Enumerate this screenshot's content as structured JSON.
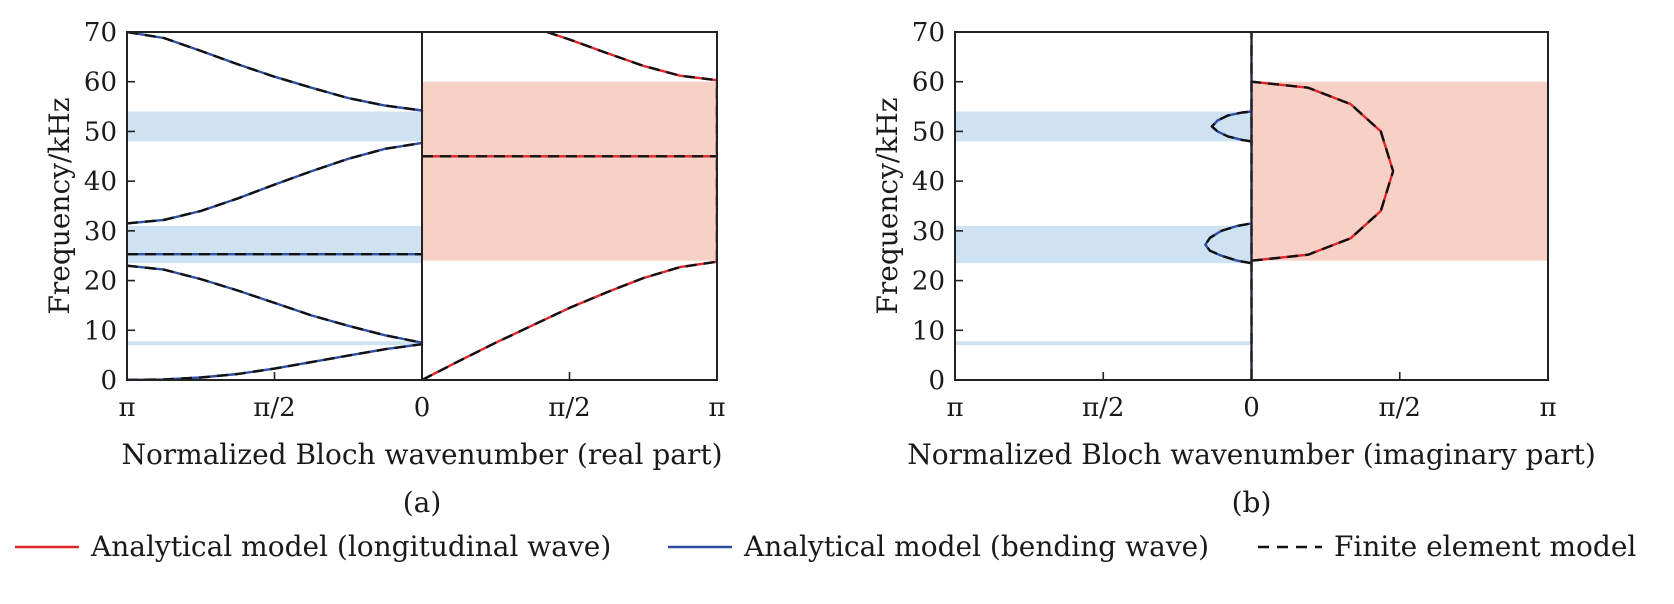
{
  "colors": {
    "longitudinal": "#e0262b",
    "bending": "#2d4ea3",
    "fe": "#111111",
    "band_blue": "#cfe2f1",
    "band_red": "#f7d0c6",
    "axis": "#222222"
  },
  "legend": {
    "items": [
      {
        "key": "longitudinal",
        "label": "Analytical model (longitudinal wave)",
        "style": "solid"
      },
      {
        "key": "bending",
        "label": "Analytical model (bending wave)",
        "style": "solid"
      },
      {
        "key": "fe",
        "label": "Finite element model",
        "style": "dashed"
      }
    ]
  },
  "chart_data": [
    {
      "type": "line",
      "panel_label": "(a)",
      "xlabel": "Normalized Bloch wavenumber (real part)",
      "ylabel": "Frequency/kHz",
      "ylim": [
        0,
        70
      ],
      "yticks": [
        0,
        10,
        20,
        30,
        40,
        50,
        60,
        70
      ],
      "x_axis": {
        "left_half": {
          "range": [
            3.1416,
            0
          ],
          "ticks": [
            "π",
            "π/2",
            "0"
          ],
          "content": "bending wave"
        },
        "right_half": {
          "range": [
            0,
            3.1416
          ],
          "ticks": [
            "0",
            "π/2",
            "π"
          ],
          "content": "longitudinal wave"
        }
      },
      "bandgaps": {
        "bending": [
          [
            48,
            54
          ],
          [
            23.5,
            31
          ],
          [
            7,
            7.8
          ]
        ],
        "longitudinal": [
          [
            24,
            60
          ]
        ]
      },
      "series": [
        {
          "key": "bending",
          "half": "left",
          "x": [
            3.1416,
            2.749,
            2.356,
            1.963,
            1.571,
            1.178,
            0.785,
            0.393,
            0
          ],
          "y": [
            0,
            0.1,
            0.5,
            1.2,
            2.3,
            3.6,
            4.9,
            6.2,
            7.2
          ]
        },
        {
          "key": "bending",
          "half": "left",
          "x": [
            3.1416,
            2.749,
            2.356,
            1.963,
            1.571,
            1.178,
            0.785,
            0.393,
            0
          ],
          "y": [
            23,
            22.2,
            20.3,
            18.0,
            15.5,
            13.0,
            10.9,
            9.0,
            7.5
          ]
        },
        {
          "key": "bending",
          "half": "left",
          "x": [
            3.1416,
            0
          ],
          "y": [
            25.3,
            25.3
          ]
        },
        {
          "key": "bending",
          "half": "left",
          "x": [
            3.1416,
            2.749,
            2.356,
            1.963,
            1.571,
            1.178,
            0.785,
            0.393,
            0
          ],
          "y": [
            31.5,
            32.2,
            34.0,
            36.5,
            39.3,
            42.0,
            44.5,
            46.5,
            47.7
          ]
        },
        {
          "key": "bending",
          "half": "left",
          "x": [
            3.1416,
            2.749,
            2.356,
            1.963,
            1.571,
            1.178,
            0.785,
            0.393,
            0
          ],
          "y": [
            70,
            68.8,
            66.2,
            63.5,
            61.0,
            58.8,
            56.7,
            55.2,
            54.2
          ]
        },
        {
          "key": "longitudinal",
          "half": "right",
          "x": [
            0,
            0.393,
            0.785,
            1.178,
            1.571,
            1.963,
            2.356,
            2.749,
            3.1416
          ],
          "y": [
            0,
            3.8,
            7.5,
            11.0,
            14.5,
            17.6,
            20.5,
            22.7,
            23.8
          ]
        },
        {
          "key": "longitudinal",
          "half": "right",
          "x": [
            0,
            3.1416
          ],
          "y": [
            45,
            45
          ]
        },
        {
          "key": "longitudinal",
          "half": "right",
          "x": [
            1.33,
            1.571,
            1.963,
            2.356,
            2.749,
            3.1416
          ],
          "y": [
            70,
            68.5,
            65.8,
            63.2,
            61.2,
            60.3
          ]
        },
        {
          "key": "longitudinal",
          "half": "right",
          "x": [
            3.1416,
            3.1416
          ],
          "y": [
            24,
            60
          ]
        }
      ]
    },
    {
      "type": "line",
      "panel_label": "(b)",
      "xlabel": "Normalized Bloch wavenumber (imaginary part)",
      "ylabel": "Frequency/kHz",
      "ylim": [
        0,
        70
      ],
      "yticks": [
        0,
        10,
        20,
        30,
        40,
        50,
        60,
        70
      ],
      "x_axis": {
        "left_half": {
          "range": [
            3.1416,
            0
          ],
          "ticks": [
            "π",
            "π/2",
            "0"
          ],
          "content": "bending wave"
        },
        "right_half": {
          "range": [
            0,
            3.1416
          ],
          "ticks": [
            "0",
            "π/2",
            "π"
          ],
          "content": "longitudinal wave"
        }
      },
      "bandgaps": {
        "bending": [
          [
            48,
            54
          ],
          [
            23.5,
            31
          ],
          [
            7,
            7.8
          ]
        ],
        "longitudinal": [
          [
            24,
            60
          ]
        ]
      },
      "series": [
        {
          "key": "bending",
          "half": "left",
          "x": [
            0,
            0.1,
            0.25,
            0.36,
            0.42,
            0.36,
            0.25,
            0.1,
            0
          ],
          "y": [
            48,
            48.3,
            49.0,
            50.0,
            51.0,
            52.2,
            53.2,
            53.8,
            54
          ]
        },
        {
          "key": "bending",
          "half": "left",
          "x": [
            0,
            0.15,
            0.32,
            0.44,
            0.49,
            0.44,
            0.32,
            0.15,
            0
          ],
          "y": [
            23.5,
            24.0,
            25.0,
            26.0,
            27.2,
            28.6,
            30.0,
            31.0,
            31.5
          ]
        },
        {
          "key": "bending",
          "half": "left",
          "x": [
            0,
            0
          ],
          "y": [
            0,
            70
          ]
        },
        {
          "key": "longitudinal",
          "half": "right",
          "x": [
            0,
            0.6,
            1.05,
            1.37,
            1.5,
            1.37,
            1.05,
            0.6,
            0
          ],
          "y": [
            24,
            25.2,
            28.5,
            34.0,
            42.0,
            50.0,
            55.5,
            58.8,
            60
          ]
        }
      ]
    }
  ]
}
